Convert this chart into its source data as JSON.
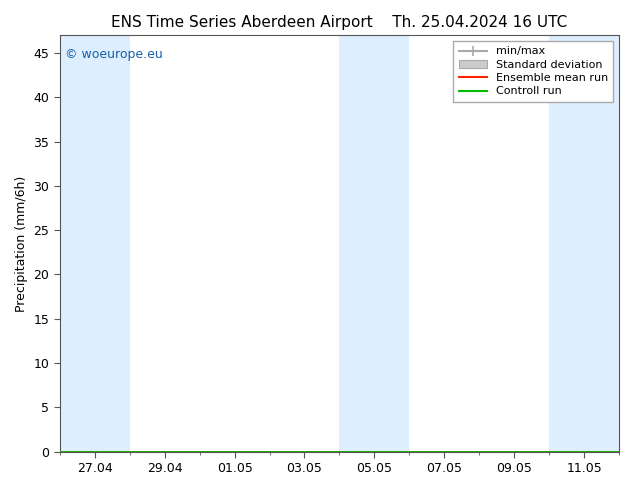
{
  "title_left": "ENS Time Series Aberdeen Airport",
  "title_right": "Th. 25.04.2024 16 UTC",
  "ylabel": "Precipitation (mm/6h)",
  "ylim": [
    0,
    47
  ],
  "yticks": [
    0,
    5,
    10,
    15,
    20,
    25,
    30,
    35,
    40,
    45
  ],
  "bg_color": "#ffffff",
  "plot_bg_color": "#ffffff",
  "watermark": "© woeurope.eu",
  "watermark_color": "#1a5fa8",
  "shaded_bands": [
    {
      "x_start": 0.0,
      "x_end": 2.0,
      "color": "#ddeeff"
    },
    {
      "x_start": 8.0,
      "x_end": 10.0,
      "color": "#ddeeff"
    },
    {
      "x_start": 14.0,
      "x_end": 16.0,
      "color": "#ddeeff"
    }
  ],
  "x_tick_labels": [
    "27.04",
    "29.04",
    "01.05",
    "03.05",
    "05.05",
    "07.05",
    "09.05",
    "11.05"
  ],
  "x_tick_positions": [
    1,
    3,
    5,
    7,
    9,
    11,
    13,
    15
  ],
  "x_minor_ticks": [
    0,
    1,
    2,
    3,
    4,
    5,
    6,
    7,
    8,
    9,
    10,
    11,
    12,
    13,
    14,
    15,
    16
  ],
  "x_range": [
    0,
    16
  ],
  "title_fontsize": 11,
  "axis_label_fontsize": 9,
  "tick_fontsize": 9,
  "legend_fontsize": 8,
  "legend_loc": "upper right"
}
